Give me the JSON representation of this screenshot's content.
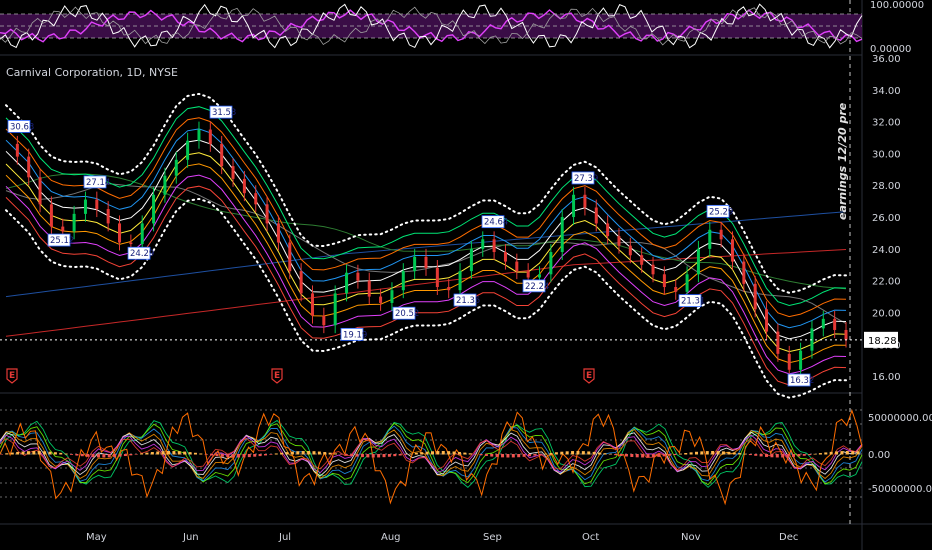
{
  "chart_data": {
    "type": "candlestick",
    "title": "Carnival Corporation, 1D, NYSE",
    "note": "earnings 12/20 pre",
    "months": [
      "May",
      "Jun",
      "Jul",
      "Aug",
      "Sep",
      "Oct",
      "Nov",
      "Dec"
    ],
    "price_axis": {
      "ticks": [
        "36.00",
        "34.00",
        "32.00",
        "30.00",
        "28.00",
        "26.00",
        "24.00",
        "22.00",
        "20.00",
        "18.00",
        "16.00"
      ],
      "ylim": [
        15.0,
        36.0
      ]
    },
    "last_price": "18.28",
    "rsi_axis": {
      "ticks": [
        "100.00000",
        "0.00000"
      ]
    },
    "volume_axis": {
      "ticks": [
        "50000000.00",
        "0.00",
        "-50000000.00"
      ]
    },
    "price_labels": [
      "30.63",
      "25.12",
      "27.14",
      "24.29",
      "31.53",
      "19.19",
      "20.52",
      "21.35",
      "24.64",
      "22.24",
      "27.39",
      "21.31",
      "25.29",
      "16.32"
    ],
    "earnings_markers": [
      "E",
      "E",
      "E"
    ],
    "close_path": [
      30.6,
      29.8,
      28.5,
      26.8,
      25.4,
      25.1,
      26.2,
      27.1,
      26.5,
      25.6,
      24.4,
      24.3,
      25.6,
      27.4,
      28.6,
      29.6,
      30.8,
      31.5,
      30.6,
      29.2,
      28.4,
      27.5,
      26.8,
      25.6,
      24.4,
      22.6,
      21.2,
      19.8,
      19.2,
      21.2,
      22.5,
      22.0,
      21.0,
      20.6,
      21.4,
      22.6,
      23.5,
      22.8,
      21.6,
      21.4,
      22.6,
      24.0,
      24.6,
      23.8,
      23.2,
      22.6,
      22.2,
      22.4,
      23.8,
      26.0,
      27.4,
      26.6,
      25.6,
      24.8,
      24.2,
      23.6,
      23.0,
      22.4,
      21.6,
      21.3,
      22.4,
      24.0,
      25.2,
      24.6,
      23.2,
      21.8,
      20.2,
      18.8,
      17.4,
      16.4,
      17.6,
      19.0,
      19.6,
      18.9,
      18.3
    ]
  }
}
